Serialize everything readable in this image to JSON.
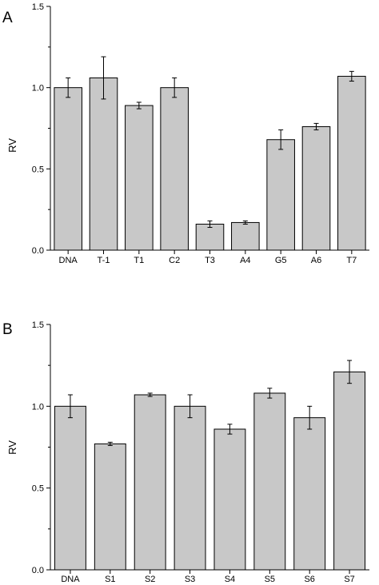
{
  "chart_data": [
    {
      "type": "bar",
      "panel_label": "A",
      "ylabel": "RV",
      "xlabel": "",
      "ylim": [
        0,
        1.5
      ],
      "yticks": [
        "0.0",
        "0.5",
        "1.0",
        "1.5"
      ],
      "categories": [
        "DNA",
        "T-1",
        "T1",
        "C2",
        "T3",
        "A4",
        "G5",
        "A6",
        "T7"
      ],
      "values": [
        1.0,
        1.06,
        0.89,
        1.0,
        0.16,
        0.17,
        0.68,
        0.76,
        1.07
      ],
      "errors": [
        0.06,
        0.13,
        0.02,
        0.06,
        0.02,
        0.01,
        0.06,
        0.02,
        0.03
      ],
      "bar_color": "#c8c8c8",
      "grid": false
    },
    {
      "type": "bar",
      "panel_label": "B",
      "ylabel": "RV",
      "xlabel": "",
      "ylim": [
        0,
        1.5
      ],
      "yticks": [
        "0.0",
        "0.5",
        "1.0",
        "1.5"
      ],
      "categories": [
        "DNA",
        "S1",
        "S2",
        "S3",
        "S4",
        "S5",
        "S6",
        "S7"
      ],
      "values": [
        1.0,
        0.77,
        1.07,
        1.0,
        0.86,
        1.08,
        0.93,
        1.21
      ],
      "errors": [
        0.07,
        0.01,
        0.01,
        0.07,
        0.03,
        0.03,
        0.07,
        0.07
      ],
      "bar_color": "#c8c8c8",
      "grid": false
    }
  ]
}
